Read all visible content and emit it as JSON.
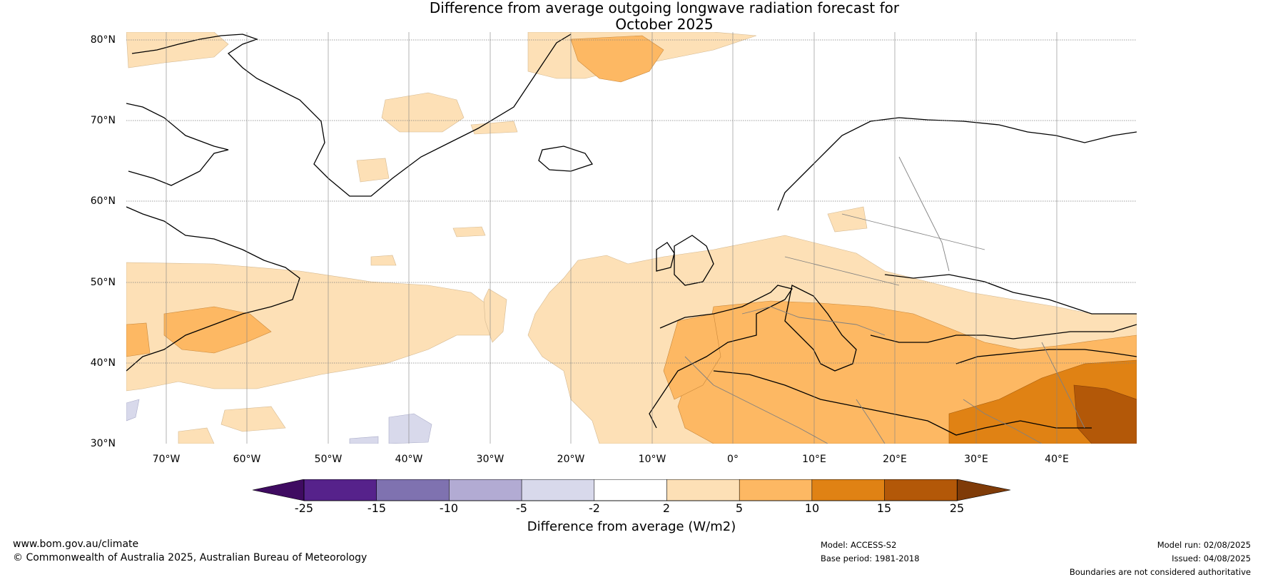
{
  "title_line1": "Difference from average outgoing longwave radiation forecast for",
  "title_line2": "October 2025",
  "lat_labels": [
    "80°N",
    "70°N",
    "60°N",
    "50°N",
    "40°N",
    "30°N"
  ],
  "lon_labels": [
    "70°W",
    "60°W",
    "50°W",
    "40°W",
    "30°W",
    "20°W",
    "10°W",
    "0°",
    "10°E",
    "20°E",
    "30°E",
    "40°E"
  ],
  "colorbar": {
    "ticks": [
      "-25",
      "-15",
      "-10",
      "-5",
      "-2",
      "2",
      "5",
      "10",
      "15",
      "25"
    ],
    "colors": {
      "below_min": "#3f0b61",
      "neg_25_15": "#56228b",
      "neg_15_10": "#7f72b0",
      "neg_10_5": "#b2abd3",
      "neg_5_2": "#d8d9eb",
      "neg_2_2": "#ffffff",
      "pos_2_5": "#fde0b6",
      "pos_5_10": "#fdb863",
      "pos_10_15": "#e08214",
      "pos_15_25": "#b35808",
      "above_max": "#7f3b08"
    },
    "label": "Difference from average (W/m2)"
  },
  "footer": {
    "website": "www.bom.gov.au/climate",
    "copyright": "© Commonwealth of Australia 2025, Australian Bureau of Meteorology",
    "model": "Model: ACCESS-S2",
    "base_period": "Base period: 1981-2018",
    "model_run": "Model run: 02/08/2025",
    "issued": "Issued: 04/08/2025",
    "disclaimer": "Boundaries are not considered authoritative"
  }
}
